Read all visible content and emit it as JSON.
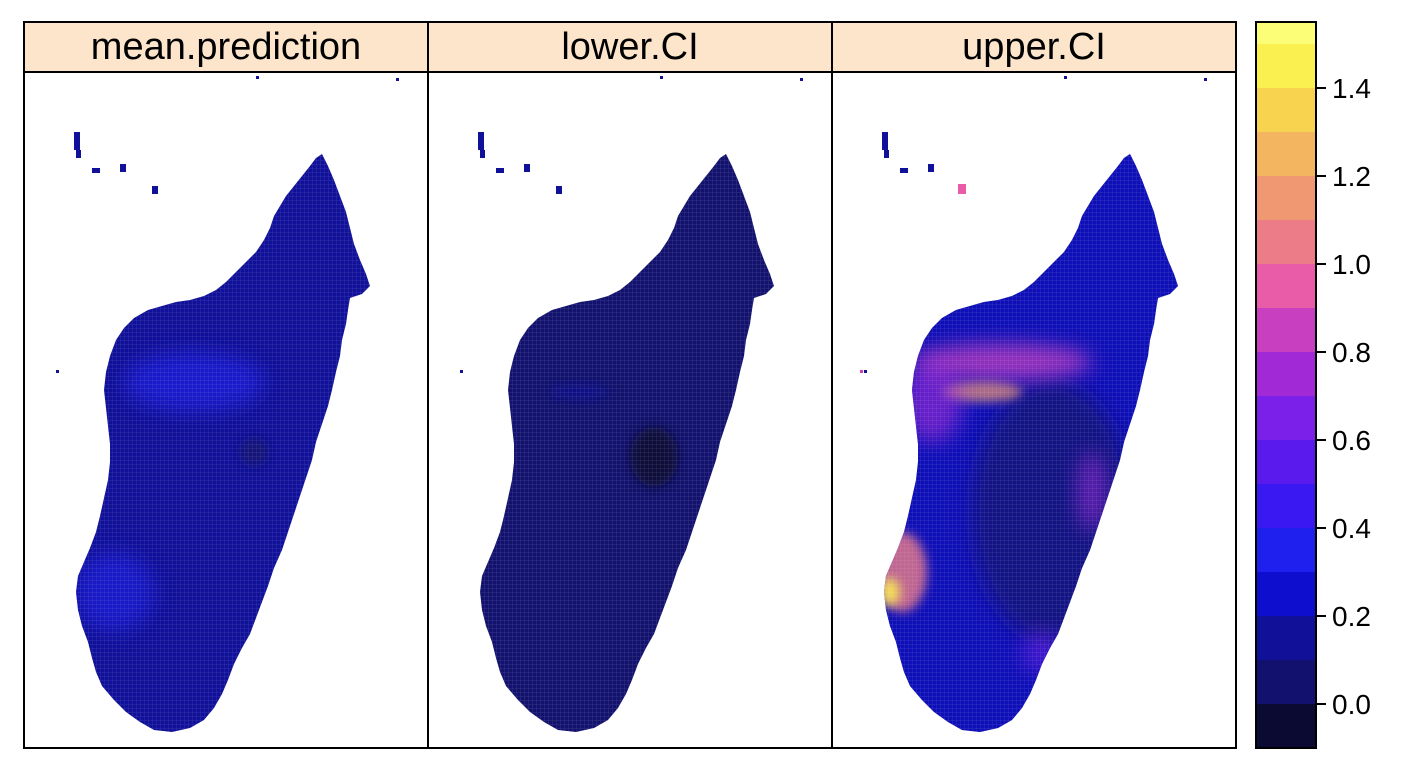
{
  "panels": [
    {
      "id": "mean",
      "title": "mean.prediction"
    },
    {
      "id": "lower",
      "title": "lower.CI"
    },
    {
      "id": "upper",
      "title": "upper.CI"
    }
  ],
  "colorkey": {
    "range": [
      -0.1,
      1.55
    ],
    "ticks": [
      {
        "value": 0.0,
        "label": "0.0"
      },
      {
        "value": 0.2,
        "label": "0.2"
      },
      {
        "value": 0.4,
        "label": "0.4"
      },
      {
        "value": 0.6,
        "label": "0.6"
      },
      {
        "value": 0.8,
        "label": "0.8"
      },
      {
        "value": 1.0,
        "label": "1.0"
      },
      {
        "value": 1.2,
        "label": "1.2"
      },
      {
        "value": 1.4,
        "label": "1.4"
      }
    ],
    "bands": [
      {
        "from": -0.1,
        "to": 0.0,
        "color": "#0a0a33"
      },
      {
        "from": 0.0,
        "to": 0.1,
        "color": "#12126e"
      },
      {
        "from": 0.1,
        "to": 0.2,
        "color": "#101099"
      },
      {
        "from": 0.2,
        "to": 0.3,
        "color": "#0e0ecf"
      },
      {
        "from": 0.3,
        "to": 0.4,
        "color": "#2020ee"
      },
      {
        "from": 0.4,
        "to": 0.5,
        "color": "#3a18f2"
      },
      {
        "from": 0.5,
        "to": 0.6,
        "color": "#5a1aee"
      },
      {
        "from": 0.6,
        "to": 0.7,
        "color": "#7a20e8"
      },
      {
        "from": 0.7,
        "to": 0.8,
        "color": "#a12ad6"
      },
      {
        "from": 0.8,
        "to": 0.9,
        "color": "#c840bf"
      },
      {
        "from": 0.9,
        "to": 1.0,
        "color": "#e85ca8"
      },
      {
        "from": 1.0,
        "to": 1.1,
        "color": "#ec7c88"
      },
      {
        "from": 1.1,
        "to": 1.2,
        "color": "#ef9872"
      },
      {
        "from": 1.2,
        "to": 1.3,
        "color": "#f3b560"
      },
      {
        "from": 1.3,
        "to": 1.4,
        "color": "#f7d350"
      },
      {
        "from": 1.4,
        "to": 1.5,
        "color": "#faf050"
      },
      {
        "from": 1.5,
        "to": 1.55,
        "color": "#fdfe78"
      }
    ]
  },
  "colors": {
    "strip_background": "#fde5cc",
    "frame": "#000000",
    "land_dark": "#12126e",
    "land_mid": "#101099"
  }
}
